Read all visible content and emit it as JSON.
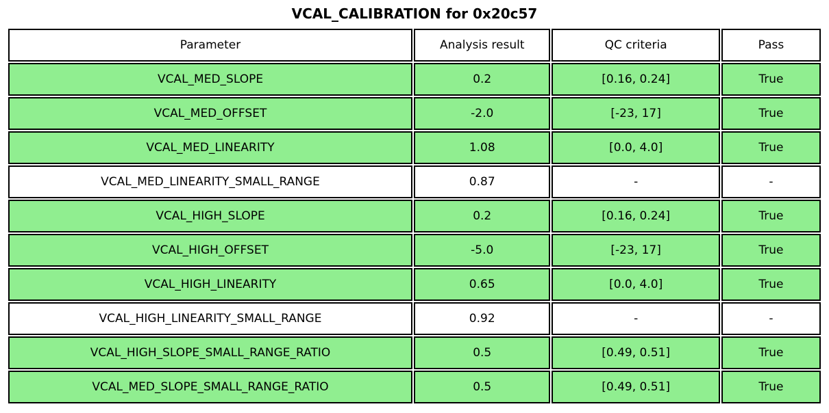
{
  "chart_data": {
    "type": "table",
    "title": "VCAL_CALIBRATION for 0x20c57",
    "columns": [
      "Parameter",
      "Analysis result",
      "QC criteria",
      "Pass"
    ],
    "rows": [
      [
        "VCAL_MED_SLOPE",
        "0.2",
        "[0.16, 0.24]",
        "True"
      ],
      [
        "VCAL_MED_OFFSET",
        "-2.0",
        "[-23, 17]",
        "True"
      ],
      [
        "VCAL_MED_LINEARITY",
        "1.08",
        "[0.0, 4.0]",
        "True"
      ],
      [
        "VCAL_MED_LINEARITY_SMALL_RANGE",
        "0.87",
        "-",
        "-"
      ],
      [
        "VCAL_HIGH_SLOPE",
        "0.2",
        "[0.16, 0.24]",
        "True"
      ],
      [
        "VCAL_HIGH_OFFSET",
        "-5.0",
        "[-23, 17]",
        "True"
      ],
      [
        "VCAL_HIGH_LINEARITY",
        "0.65",
        "[0.0, 4.0]",
        "True"
      ],
      [
        "VCAL_HIGH_LINEARITY_SMALL_RANGE",
        "0.92",
        "-",
        "-"
      ],
      [
        "VCAL_HIGH_SLOPE_SMALL_RANGE_RATIO",
        "0.5",
        "[0.49, 0.51]",
        "True"
      ],
      [
        "VCAL_MED_SLOPE_SMALL_RANGE_RATIO",
        "0.5",
        "[0.49, 0.51]",
        "True"
      ]
    ],
    "row_status": [
      "pass",
      "pass",
      "pass",
      "neutral",
      "pass",
      "pass",
      "pass",
      "neutral",
      "pass",
      "pass"
    ],
    "layout": {
      "legend": "none",
      "grid": "cell-borders",
      "header_background": "#ffffff"
    },
    "colors": {
      "pass_row_background": "#90ee90",
      "neutral_row_background": "#ffffff",
      "border": "#000000",
      "text": "#000000"
    }
  }
}
